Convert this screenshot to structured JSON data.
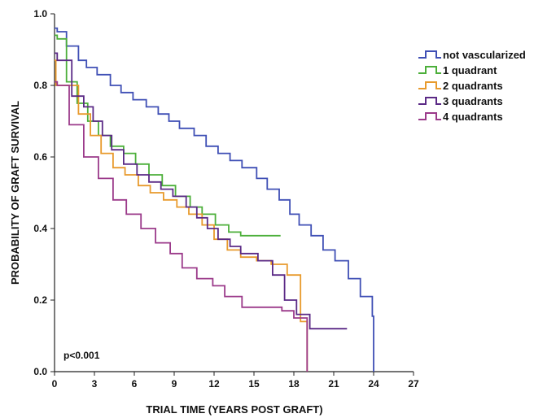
{
  "chart_data": {
    "type": "line",
    "step": true,
    "xlabel": "TRIAL TIME (YEARS POST GRAFT)",
    "ylabel": "PROBABILITY OF GRAFT SURVIVAL",
    "xlim": [
      0,
      27
    ],
    "ylim": [
      0,
      1.0
    ],
    "x_ticks": [
      "0",
      "3",
      "6",
      "9",
      "12",
      "15",
      "18",
      "21",
      "24",
      "27"
    ],
    "y_ticks": [
      "0.0",
      "0.2",
      "0.4",
      "0.6",
      "0.8",
      "1.0"
    ],
    "annotation": "p<0.001",
    "legend_position": "top-right",
    "grid": false,
    "series": [
      {
        "name": "not vascularized",
        "color": "#3f4fb5",
        "x": [
          0,
          0.2,
          0.9,
          1.8,
          2.4,
          3.2,
          4.2,
          5.0,
          5.9,
          6.9,
          7.8,
          8.6,
          9.4,
          10.5,
          11.4,
          12.3,
          13.2,
          14.1,
          15.2,
          16.0,
          16.9,
          17.7,
          18.4,
          19.3,
          20.2,
          21.1,
          22.1,
          23.0,
          23.9,
          24.0
        ],
        "y": [
          0.96,
          0.95,
          0.91,
          0.87,
          0.85,
          0.83,
          0.8,
          0.78,
          0.76,
          0.74,
          0.72,
          0.7,
          0.68,
          0.66,
          0.63,
          0.61,
          0.59,
          0.57,
          0.54,
          0.51,
          0.48,
          0.44,
          0.41,
          0.38,
          0.34,
          0.31,
          0.26,
          0.21,
          0.155,
          0.0
        ]
      },
      {
        "name": "1 quadrant",
        "color": "#4caf3a",
        "x": [
          0,
          0.2,
          0.9,
          1.7,
          2.5,
          3.3,
          4.2,
          5.2,
          6.1,
          7.1,
          8.1,
          9.1,
          10.2,
          11.1,
          12.1,
          13.1,
          14.0,
          17.0
        ],
        "y": [
          0.94,
          0.93,
          0.81,
          0.75,
          0.7,
          0.66,
          0.63,
          0.61,
          0.58,
          0.55,
          0.52,
          0.49,
          0.46,
          0.44,
          0.41,
          0.39,
          0.38,
          0.38
        ]
      },
      {
        "name": "2 quadrants",
        "color": "#e89a2c",
        "x": [
          0,
          0.1,
          0.6,
          1.8,
          2.7,
          3.5,
          4.4,
          5.3,
          6.3,
          7.2,
          8.2,
          9.2,
          10.1,
          11.1,
          12.0,
          13.0,
          14.0,
          15.2,
          16.3,
          17.5,
          18.5,
          19.0
        ],
        "y": [
          0.87,
          0.8,
          0.8,
          0.72,
          0.66,
          0.61,
          0.57,
          0.55,
          0.52,
          0.5,
          0.48,
          0.46,
          0.44,
          0.41,
          0.37,
          0.34,
          0.32,
          0.31,
          0.3,
          0.27,
          0.14,
          0.0
        ]
      },
      {
        "name": "3 quadrants",
        "color": "#5b2a86",
        "x": [
          0,
          0.2,
          1.3,
          2.2,
          2.9,
          3.6,
          4.3,
          5.2,
          6.2,
          7.1,
          8.0,
          8.9,
          9.9,
          10.7,
          11.5,
          12.3,
          13.2,
          14.0,
          15.3,
          16.4,
          17.3,
          18.2,
          19.2,
          22.0
        ],
        "y": [
          0.89,
          0.87,
          0.77,
          0.74,
          0.7,
          0.66,
          0.62,
          0.58,
          0.55,
          0.53,
          0.51,
          0.49,
          0.46,
          0.43,
          0.4,
          0.37,
          0.35,
          0.33,
          0.31,
          0.27,
          0.2,
          0.16,
          0.12,
          0.12
        ]
      },
      {
        "name": "4 quadrants",
        "color": "#9b3a8a",
        "x": [
          0,
          0.2,
          1.1,
          2.2,
          3.3,
          4.4,
          5.4,
          6.5,
          7.6,
          8.7,
          9.6,
          10.7,
          11.9,
          12.8,
          14.1,
          17.1,
          18.0,
          18.6,
          19.0
        ],
        "y": [
          0.81,
          0.8,
          0.69,
          0.6,
          0.54,
          0.48,
          0.44,
          0.4,
          0.36,
          0.33,
          0.29,
          0.26,
          0.24,
          0.21,
          0.18,
          0.17,
          0.15,
          0.15,
          0.0
        ]
      }
    ]
  }
}
